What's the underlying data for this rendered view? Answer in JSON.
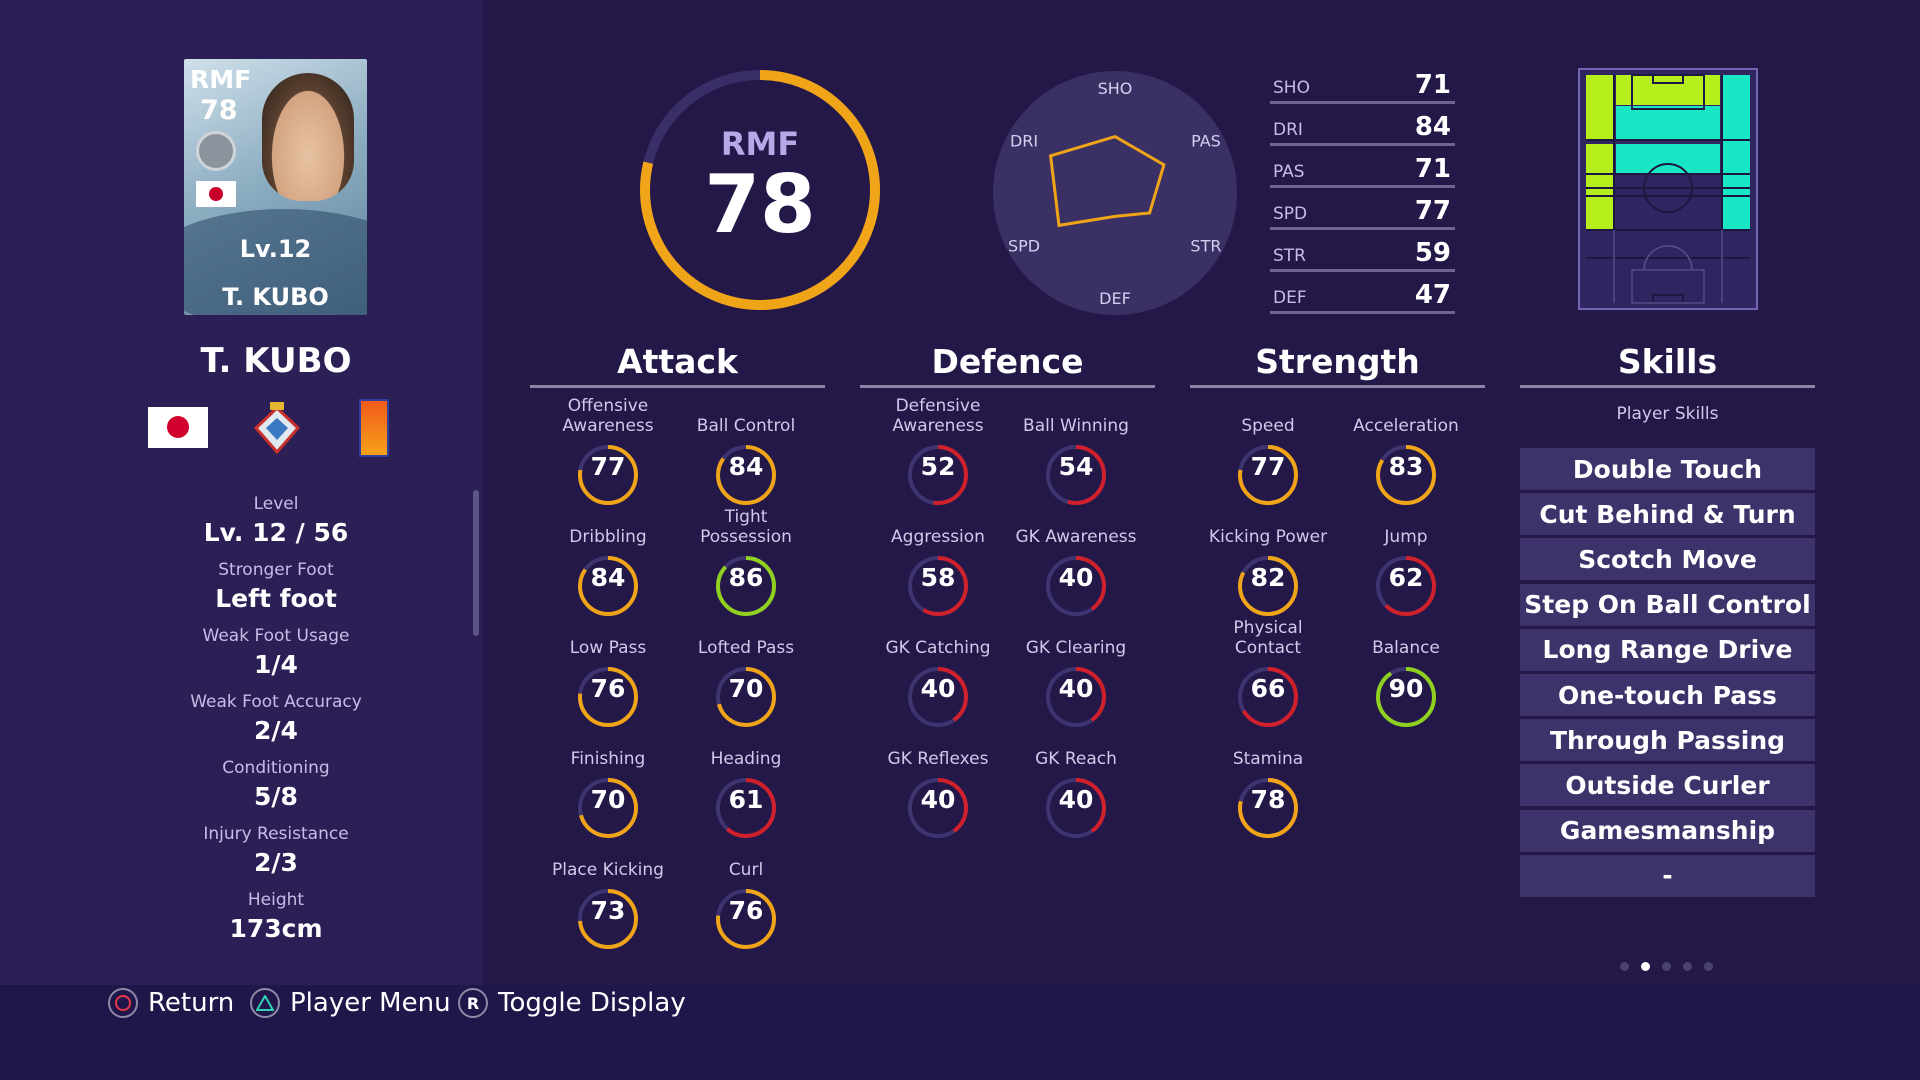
{
  "card": {
    "position": "RMF",
    "overall": "78",
    "level": "Lv.12",
    "name": "T. KUBO"
  },
  "player": {
    "name": "T. KUBO"
  },
  "info": [
    {
      "label": "Level",
      "value": "Lv. 12 / 56"
    },
    {
      "label": "Stronger Foot",
      "value": "Left foot"
    },
    {
      "label": "Weak Foot Usage",
      "value": "1/4"
    },
    {
      "label": "Weak Foot Accuracy",
      "value": "2/4"
    },
    {
      "label": "Conditioning",
      "value": "5/8"
    },
    {
      "label": "Injury Resistance",
      "value": "2/3"
    },
    {
      "label": "Height",
      "value": "173cm"
    }
  ],
  "rating": {
    "position": "RMF",
    "overall": "78",
    "overall_value": 78
  },
  "radar": {
    "labels": [
      "SHO",
      "PAS",
      "STR",
      "DEF",
      "SPD",
      "DRI"
    ],
    "values": [
      71,
      71,
      59,
      47,
      77,
      84
    ]
  },
  "hexagon_stats": [
    {
      "key": "SHO",
      "value": "71"
    },
    {
      "key": "DRI",
      "value": "84"
    },
    {
      "key": "PAS",
      "value": "71"
    },
    {
      "key": "SPD",
      "value": "77"
    },
    {
      "key": "STR",
      "value": "59"
    },
    {
      "key": "DEF",
      "value": "47"
    }
  ],
  "sections": {
    "attack": {
      "title": "Attack",
      "stats": [
        {
          "label": "Offensive Awareness",
          "value": "77"
        },
        {
          "label": "Ball Control",
          "value": "84"
        },
        {
          "label": "Dribbling",
          "value": "84"
        },
        {
          "label": "Tight Possession",
          "value": "86"
        },
        {
          "label": "Low Pass",
          "value": "76"
        },
        {
          "label": "Lofted Pass",
          "value": "70"
        },
        {
          "label": "Finishing",
          "value": "70"
        },
        {
          "label": "Heading",
          "value": "61"
        },
        {
          "label": "Place Kicking",
          "value": "73"
        },
        {
          "label": "Curl",
          "value": "76"
        }
      ]
    },
    "defence": {
      "title": "Defence",
      "stats": [
        {
          "label": "Defensive Awareness",
          "value": "52"
        },
        {
          "label": "Ball Winning",
          "value": "54"
        },
        {
          "label": "Aggression",
          "value": "58"
        },
        {
          "label": "GK Awareness",
          "value": "40"
        },
        {
          "label": "GK Catching",
          "value": "40"
        },
        {
          "label": "GK Clearing",
          "value": "40"
        },
        {
          "label": "GK Reflexes",
          "value": "40"
        },
        {
          "label": "GK Reach",
          "value": "40"
        }
      ]
    },
    "strength": {
      "title": "Strength",
      "stats": [
        {
          "label": "Speed",
          "value": "77"
        },
        {
          "label": "Acceleration",
          "value": "83"
        },
        {
          "label": "Kicking Power",
          "value": "82"
        },
        {
          "label": "Jump",
          "value": "62"
        },
        {
          "label": "Physical Contact",
          "value": "66"
        },
        {
          "label": "Balance",
          "value": "90"
        },
        {
          "label": "Stamina",
          "value": "78"
        }
      ]
    },
    "skills": {
      "title": "Skills",
      "subtitle": "Player Skills",
      "items": [
        "Double Touch",
        "Cut Behind & Turn",
        "Scotch Move",
        "Step On Ball Control",
        "Long Range Drive",
        "One-touch Pass",
        "Through Passing",
        "Outside Curler",
        "Gamesmanship",
        "-"
      ]
    }
  },
  "buttons": {
    "return": "Return",
    "player_menu": "Player Menu",
    "toggle": "Toggle Display",
    "r_glyph": "R"
  },
  "colors": {
    "gold": "#f0a418",
    "red": "#d0202c",
    "green": "#8fd11e",
    "lime": "#b6ef1c",
    "cyan": "#19e6c4"
  }
}
